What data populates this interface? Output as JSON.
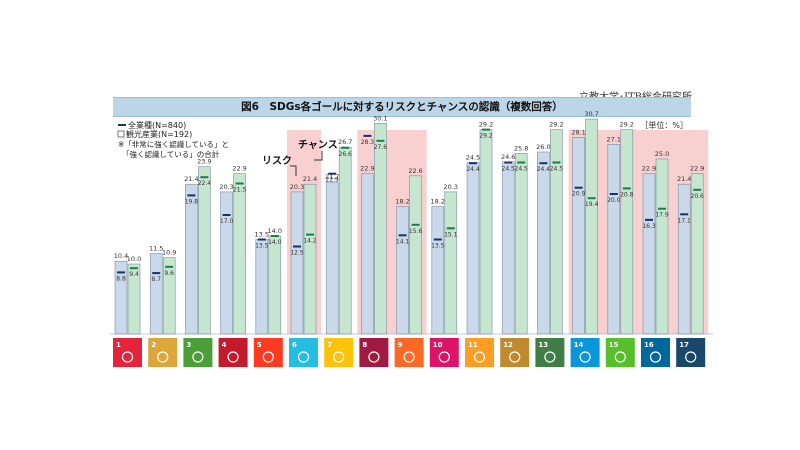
{
  "source": "立教大学･JTB総合研究所",
  "title": "図6　SDGs各ゴールに対するリスクとチャンスの認識（複数回答）",
  "unit": "［単位：%］",
  "legend": {
    "all_industries": "全業種(N=840)",
    "tourism": "観光産業(N=192)",
    "note_line1": "※「非常に強く認識している」と",
    "note_line2": "「強く認識している」の合計"
  },
  "annotations": {
    "risk": "リスク",
    "chance": "チャンス"
  },
  "colors": {
    "risk_bar_fill": "#c9d9ea",
    "chance_bar_fill": "#c6e6cf",
    "bar_border": "#7a8da3",
    "all_industry_marker": "#1c2f6b",
    "tourism_marker": "#1f7a4a",
    "highlight_band": "#f8c8c8",
    "title_bar": "#bcd6e8"
  },
  "chart_data": {
    "type": "bar",
    "categories": [
      "1",
      "2",
      "3",
      "4",
      "5",
      "6",
      "7",
      "8",
      "9",
      "10",
      "11",
      "12",
      "13",
      "14",
      "15",
      "16",
      "17"
    ],
    "series": [
      {
        "name": "リスク（観光産業）",
        "values": [
          10.4,
          11.5,
          21.4,
          20.3,
          13.5,
          20.3,
          21.7,
          22.9,
          18.2,
          18.2,
          24.5,
          24.6,
          26.0,
          28.1,
          27.1,
          22.9,
          21.4
        ]
      },
      {
        "name": "チャンス（観光産業）",
        "values": [
          10.0,
          10.9,
          23.9,
          22.9,
          14.0,
          21.4,
          26.7,
          30.1,
          22.6,
          20.3,
          29.2,
          25.8,
          29.2,
          30.7,
          29.2,
          25.0,
          22.9
        ]
      },
      {
        "name": "リスク（全業種）",
        "values": [
          8.8,
          8.7,
          19.8,
          17.0,
          13.5,
          12.5,
          22.9,
          28.3,
          14.1,
          13.5,
          24.4,
          24.5,
          24.4,
          20.9,
          20.0,
          16.3,
          17.1
        ]
      },
      {
        "name": "チャンス（全業種）",
        "values": [
          9.4,
          9.6,
          22.4,
          21.5,
          14.0,
          14.2,
          26.6,
          27.6,
          15.6,
          15.1,
          29.2,
          24.5,
          24.5,
          19.4,
          20.8,
          17.9,
          20.6
        ]
      }
    ],
    "highlighted_goals": [
      "6",
      "8",
      "9",
      "14",
      "15",
      "16",
      "17"
    ],
    "goal_colors": [
      "#e5243b",
      "#dda63a",
      "#4c9f38",
      "#c5192d",
      "#ff3a21",
      "#26bde2",
      "#fcc30b",
      "#a21942",
      "#fd6925",
      "#dd1367",
      "#fd9d24",
      "#bf8b2e",
      "#3f7e44",
      "#0a97d9",
      "#56c02b",
      "#00689d",
      "#19486a"
    ],
    "ylim": [
      0,
      34
    ],
    "grid": false,
    "legend_position": "top-left"
  }
}
